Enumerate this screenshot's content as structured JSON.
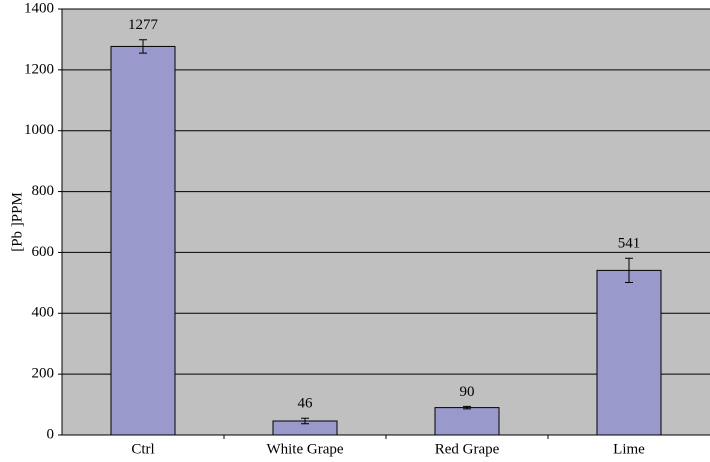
{
  "chart_data": {
    "type": "bar",
    "y_label": "[Pb ]PPM",
    "categories": [
      "Ctrl",
      "White Grape",
      "Red Grape",
      "Lime"
    ],
    "values": [
      1277,
      46,
      90,
      541
    ],
    "errors": [
      22,
      9,
      4,
      40
    ],
    "color": "#9999cc",
    "plot_background": "#c0c0c0",
    "ylim": [
      0,
      1400
    ],
    "yticks": [
      0,
      200,
      400,
      600,
      800,
      1000,
      1200,
      1400
    ],
    "grid": true
  }
}
